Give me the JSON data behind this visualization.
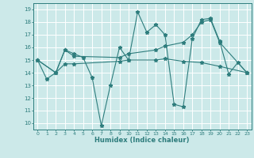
{
  "title": "",
  "xlabel": "Humidex (Indice chaleur)",
  "xlim": [
    -0.5,
    23.5
  ],
  "ylim": [
    9.5,
    19.5
  ],
  "yticks": [
    10,
    11,
    12,
    13,
    14,
    15,
    16,
    17,
    18,
    19
  ],
  "xticks": [
    0,
    1,
    2,
    3,
    4,
    5,
    6,
    7,
    8,
    9,
    10,
    11,
    12,
    13,
    14,
    15,
    16,
    17,
    18,
    19,
    20,
    21,
    22,
    23
  ],
  "background_color": "#cce9e9",
  "grid_color": "#ffffff",
  "line_color": "#2e7d7d",
  "series": [
    {
      "x": [
        0,
        1,
        2,
        3,
        4,
        5,
        6,
        7,
        8,
        9,
        10,
        11,
        12,
        13,
        14,
        15,
        16,
        17,
        18,
        19,
        20,
        21,
        22,
        23
      ],
      "y": [
        15.0,
        13.5,
        14.0,
        15.8,
        15.5,
        15.2,
        13.6,
        9.8,
        13.0,
        16.0,
        15.0,
        18.8,
        17.2,
        17.8,
        17.0,
        11.5,
        11.3,
        16.7,
        18.2,
        18.3,
        16.5,
        13.9,
        14.8,
        14.0
      ]
    },
    {
      "x": [
        0,
        2,
        3,
        4,
        9,
        10,
        13,
        14,
        16,
        17,
        18,
        19,
        20,
        23
      ],
      "y": [
        15.0,
        14.0,
        15.8,
        15.3,
        15.2,
        15.5,
        15.8,
        16.1,
        16.4,
        17.0,
        18.0,
        18.2,
        16.4,
        14.0
      ]
    },
    {
      "x": [
        0,
        2,
        3,
        4,
        9,
        10,
        13,
        14,
        16,
        18,
        20,
        23
      ],
      "y": [
        15.0,
        14.0,
        14.7,
        14.7,
        14.9,
        15.0,
        15.0,
        15.1,
        14.9,
        14.8,
        14.5,
        14.0
      ]
    }
  ]
}
